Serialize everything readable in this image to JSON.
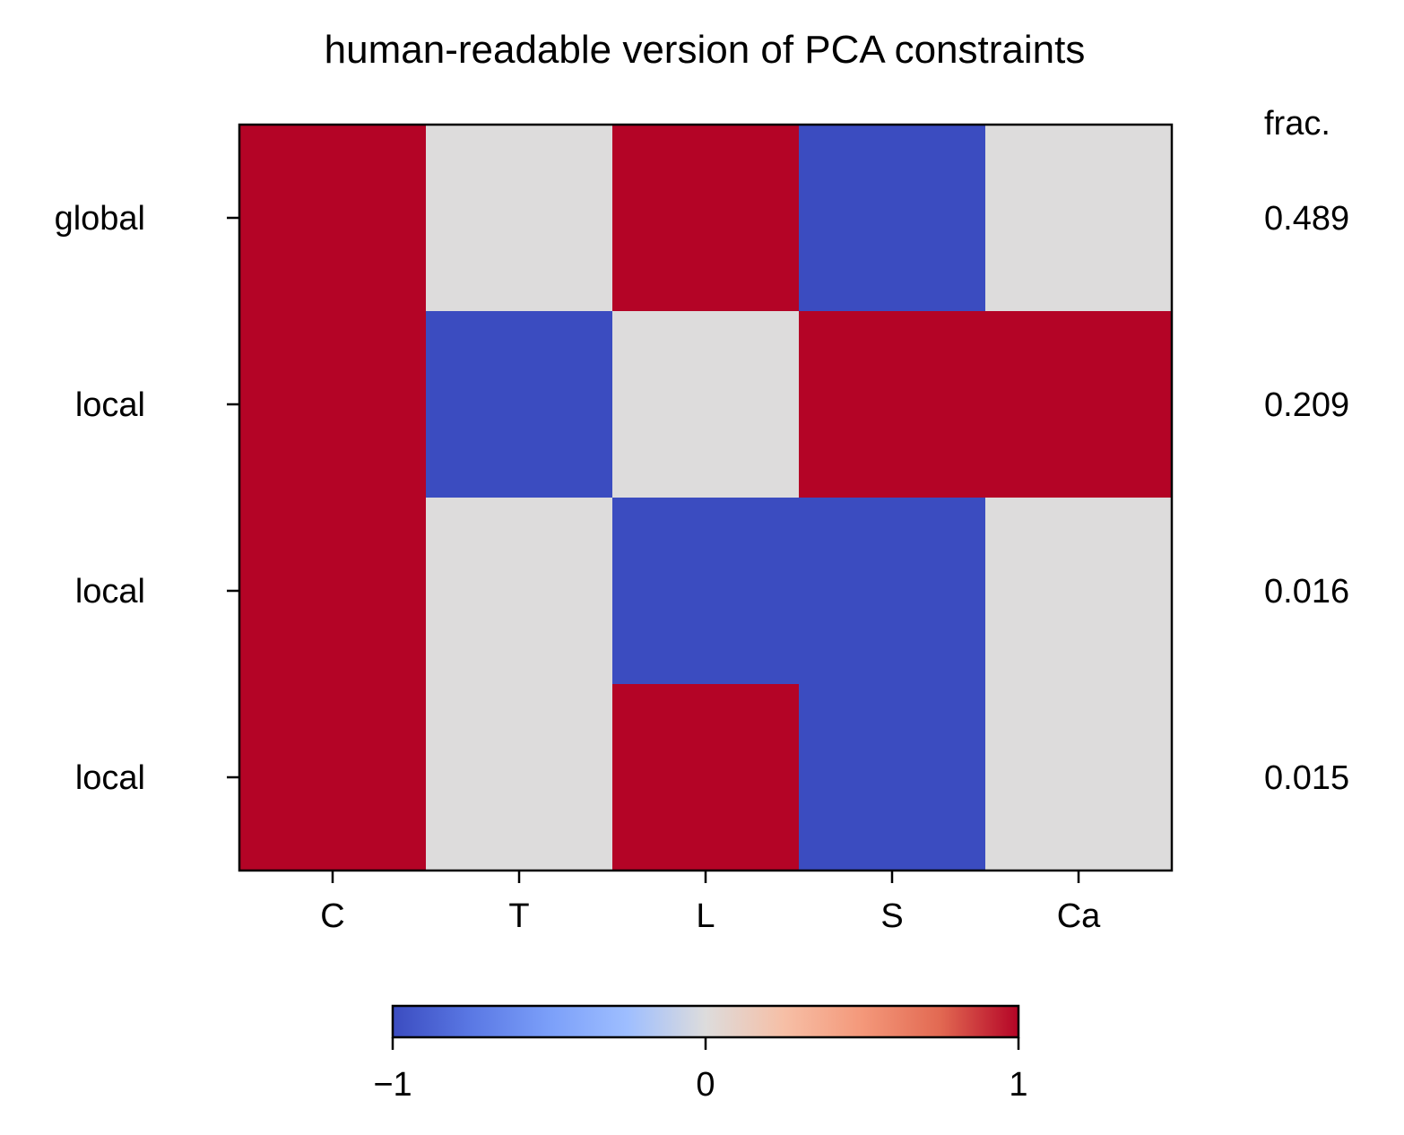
{
  "chart_data": {
    "type": "heatmap",
    "title": "human-readable version of PCA constraints",
    "x_categories": [
      "C",
      "T",
      "L",
      "S",
      "Ca"
    ],
    "y_categories": [
      "global",
      "local",
      "local",
      "local"
    ],
    "values": [
      [
        1,
        0,
        1,
        -1,
        0
      ],
      [
        1,
        -1,
        0,
        1,
        1
      ],
      [
        1,
        0,
        -1,
        -1,
        0
      ],
      [
        1,
        0,
        1,
        -1,
        0
      ]
    ],
    "right_column": {
      "header": "frac.",
      "values": [
        "0.489",
        "0.209",
        "0.016",
        "0.015"
      ]
    },
    "colorbar": {
      "colormap": "coolwarm",
      "min": -1,
      "max": 1,
      "tick_values": [
        -1,
        0,
        1
      ],
      "tick_labels": [
        "−1",
        "0",
        "1"
      ],
      "orientation": "horizontal",
      "placement": "bottom"
    },
    "colors": {
      "negative": "#3b4cc0",
      "neutral": "#dddcdc",
      "positive": "#b40426"
    },
    "grid": false
  }
}
